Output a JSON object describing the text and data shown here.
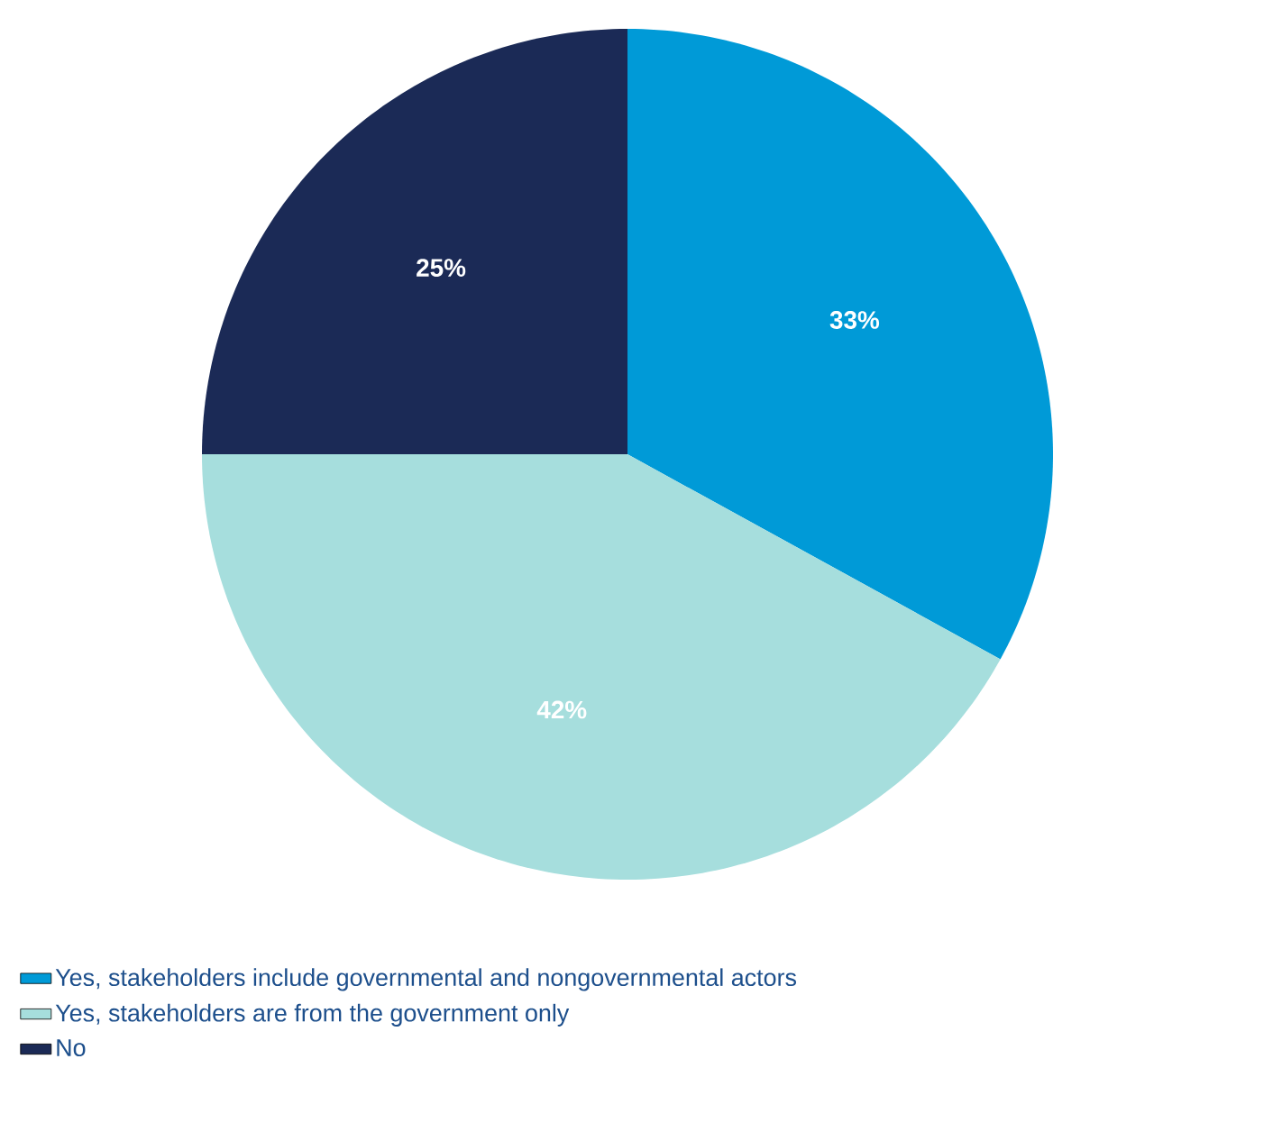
{
  "chart_data": {
    "type": "pie",
    "categories": [
      "Yes, stakeholders include governmental and nongovernmental actors",
      "Yes, stakeholders are from the government only",
      "No"
    ],
    "values": [
      33,
      42,
      25
    ],
    "colors": [
      "#009ad7",
      "#a6dedd",
      "#1b2a56"
    ],
    "value_labels": [
      "33%",
      "42%",
      "25%"
    ],
    "legend": "bottom"
  }
}
